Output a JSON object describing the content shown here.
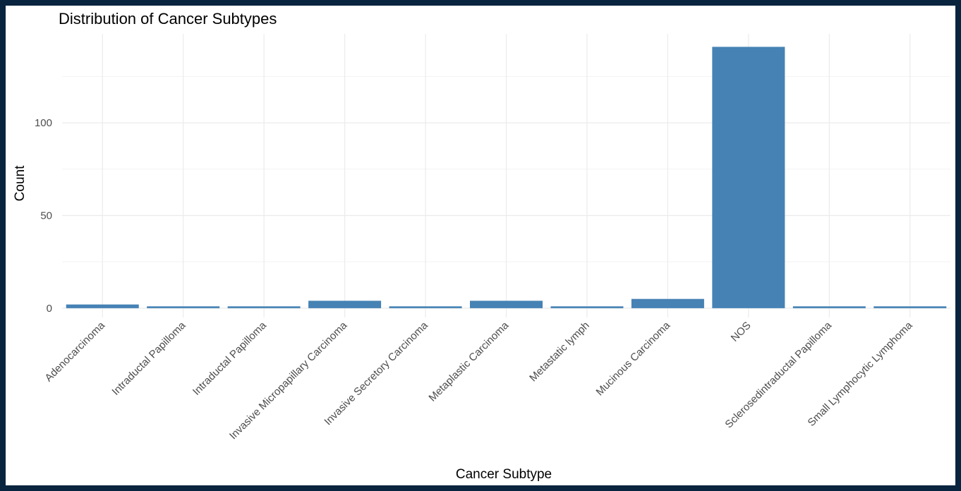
{
  "chart_data": {
    "type": "bar",
    "title": "Distribution of Cancer Subtypes",
    "xlabel": "Cancer Subtype",
    "ylabel": "Count",
    "categories": [
      "Adenocarcinoma",
      "Intraductal Papilloma",
      "Intraductal Papilloma",
      "Invasive Micropapillary Carcinoma",
      "Invasive Secretory Carcinoma",
      "Metaplastic Carcinoma",
      "Metastatic lymph",
      "Mucinous Carcinoma",
      "NOS",
      "Sclerosedintraductal Papilloma",
      "Small Lymphocytic Lymphoma"
    ],
    "values": [
      2,
      1,
      1,
      4,
      1,
      4,
      1,
      5,
      141,
      1,
      1
    ],
    "ylim": [
      -5,
      148
    ],
    "yticks": [
      0,
      50,
      100
    ],
    "grid": true,
    "bar_color": "#4682b4",
    "legend": "none"
  }
}
